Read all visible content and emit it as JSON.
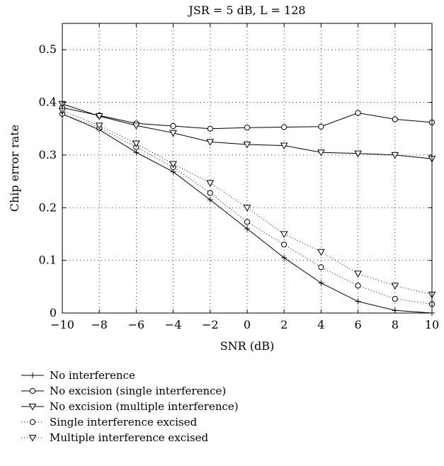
{
  "chart_data": {
    "type": "line",
    "title": "JSR = 5 dB, L = 128",
    "xlabel": "SNR (dB)",
    "ylabel": "Chip error rate",
    "xlim": [
      -10,
      10
    ],
    "ylim": [
      0,
      0.55
    ],
    "x_ticks": [
      -10,
      -8,
      -6,
      -4,
      -2,
      0,
      2,
      4,
      6,
      8,
      10
    ],
    "y_ticks": [
      0,
      0.1,
      0.2,
      0.3,
      0.4,
      0.5
    ],
    "x_tick_labels": [
      "−10",
      "−8",
      "−6",
      "−4",
      "−2",
      "0",
      "2",
      "4",
      "6",
      "8",
      "10"
    ],
    "y_tick_labels": [
      "0",
      "0.1",
      "0.2",
      "0.3",
      "0.4",
      "0.5"
    ],
    "grid": true,
    "legend_position": "below",
    "x": [
      -10,
      -8,
      -6,
      -4,
      -2,
      0,
      2,
      4,
      6,
      8,
      10
    ],
    "series": [
      {
        "name": "No interference",
        "marker": "plus",
        "line": "solid",
        "values": [
          0.378,
          0.348,
          0.305,
          0.268,
          0.215,
          0.16,
          0.105,
          0.057,
          0.022,
          0.005,
          0.0
        ]
      },
      {
        "name": "No excision (single interference)",
        "marker": "circle",
        "line": "solid",
        "values": [
          0.39,
          0.375,
          0.36,
          0.355,
          0.35,
          0.352,
          0.353,
          0.354,
          0.38,
          0.368,
          0.362
        ]
      },
      {
        "name": "No excision (multiple interference)",
        "marker": "triangle-down",
        "line": "solid",
        "values": [
          0.397,
          0.374,
          0.356,
          0.342,
          0.325,
          0.32,
          0.318,
          0.305,
          0.303,
          0.3,
          0.293
        ]
      },
      {
        "name": "Single interference excised",
        "marker": "circle",
        "line": "dotted",
        "values": [
          0.378,
          0.352,
          0.315,
          0.277,
          0.228,
          0.173,
          0.13,
          0.087,
          0.052,
          0.027,
          0.017
        ]
      },
      {
        "name": "Multiple interference excised",
        "marker": "triangle-down",
        "line": "dotted",
        "values": [
          0.384,
          0.356,
          0.322,
          0.283,
          0.247,
          0.2,
          0.15,
          0.116,
          0.075,
          0.052,
          0.035
        ]
      }
    ]
  }
}
